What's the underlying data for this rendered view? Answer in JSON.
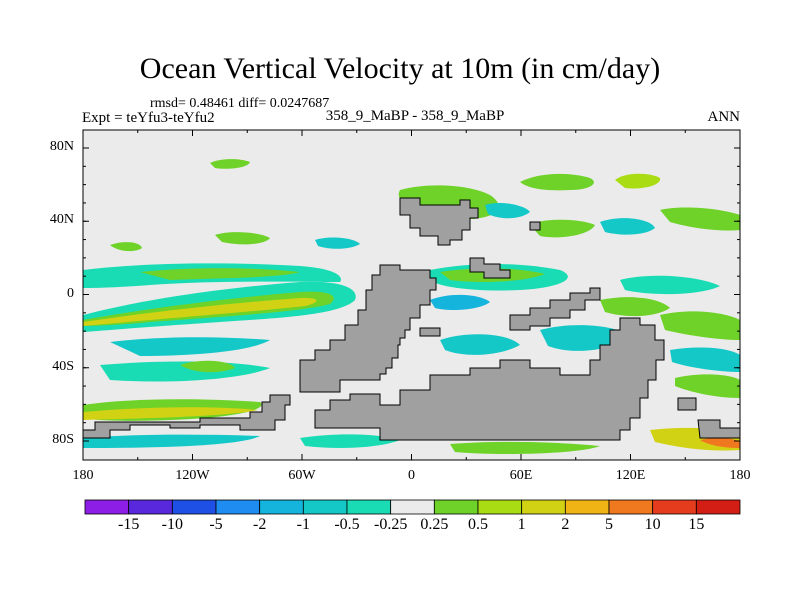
{
  "figure": {
    "title": "Ocean Vertical Velocity at 10m (in cm/day)",
    "stats": "rmsd= 0.48461 diff= 0.0247687",
    "experiment": "Expt = teYfu3-teYfu2",
    "case": "358_9_MaBP - 358_9_MaBP",
    "season": "ANN"
  },
  "axes": {
    "lat_labels": [
      "80N",
      "40N",
      "0",
      "40S",
      "80S"
    ],
    "lat_values": [
      80,
      40,
      0,
      -40,
      -80
    ],
    "lon_labels": [
      "180",
      "120W",
      "60W",
      "0",
      "60E",
      "120E",
      "180"
    ],
    "lon_values": [
      -180,
      -120,
      -60,
      0,
      60,
      120,
      180
    ]
  },
  "colorbar": {
    "labels": [
      "-15",
      "-10",
      "-5",
      "-2",
      "-1",
      "-0.5",
      "-0.25",
      "0.25",
      "0.5",
      "1",
      "2",
      "5",
      "10",
      "15"
    ],
    "colors": [
      "#8c1ee6",
      "#5a28dc",
      "#1e50e6",
      "#1e8cf0",
      "#14b4dc",
      "#14c8c8",
      "#19dcb4",
      "#ebebeb",
      "#6ed228",
      "#aadc14",
      "#d2d214",
      "#f0b414",
      "#f0781e",
      "#e63c1e",
      "#d21e14"
    ]
  },
  "colors": {
    "land": "#a0a0a0",
    "ocean_background": "#ebebeb",
    "positive_weak": "#6ed228",
    "positive_mid": "#d2d214",
    "positive_strong": "#f0b414",
    "negative_weak": "#19dcb4",
    "negative_mid": "#14b4dc",
    "negative_strong": "#1e8cf0"
  }
}
